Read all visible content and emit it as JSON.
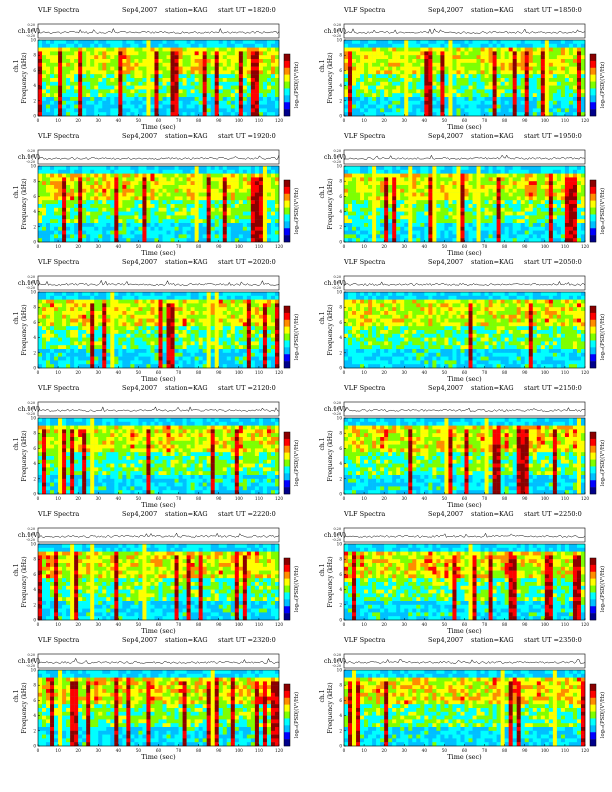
{
  "page_title": "VLF Spectra multi-panel figure",
  "common": {
    "program": "VLF Spectra",
    "date": "Sep4,2007",
    "station": "station=KAG",
    "start_prefix": "start  UT =",
    "ch_label": "ch.1",
    "ch_unit": "(V)",
    "freq_label": "Frequency",
    "freq_unit": "(kHz)",
    "x_label": "Time  (sec)",
    "colorbar_label": "log₁₀(PSD[(V²/Hz)",
    "x_ticks": [
      "0",
      "10",
      "20",
      "30",
      "40",
      "50",
      "60",
      "70",
      "80",
      "90",
      "100",
      "110",
      "120"
    ],
    "y_ticks": [
      "0",
      "2",
      "4",
      "6",
      "8",
      "10"
    ],
    "wave_ticks": [
      "0.20",
      "0.00",
      "-0.20"
    ]
  },
  "panels": [
    {
      "start_ut": "1820:0"
    },
    {
      "start_ut": "1850:0"
    },
    {
      "start_ut": "1920:0"
    },
    {
      "start_ut": "1950:0"
    },
    {
      "start_ut": "2020:0"
    },
    {
      "start_ut": "2050:0"
    },
    {
      "start_ut": "2120:0"
    },
    {
      "start_ut": "2150:0"
    },
    {
      "start_ut": "2220:0"
    },
    {
      "start_ut": "2250:0"
    },
    {
      "start_ut": "2320:0"
    },
    {
      "start_ut": "2350:0"
    }
  ],
  "chart_data": {
    "type": "heatmap",
    "xlabel": "Time (sec)",
    "ylabel": "Frequency (kHz)",
    "xlim": [
      0,
      120
    ],
    "ylim": [
      0,
      10
    ],
    "waveform_ylim": [
      -0.2,
      0.2
    ],
    "colormap": [
      "#00008b",
      "#0000ff",
      "#00bfff",
      "#00ffff",
      "#7fff00",
      "#ffff00",
      "#ff8c00",
      "#ff0000",
      "#8b0000"
    ],
    "grid": false
  }
}
